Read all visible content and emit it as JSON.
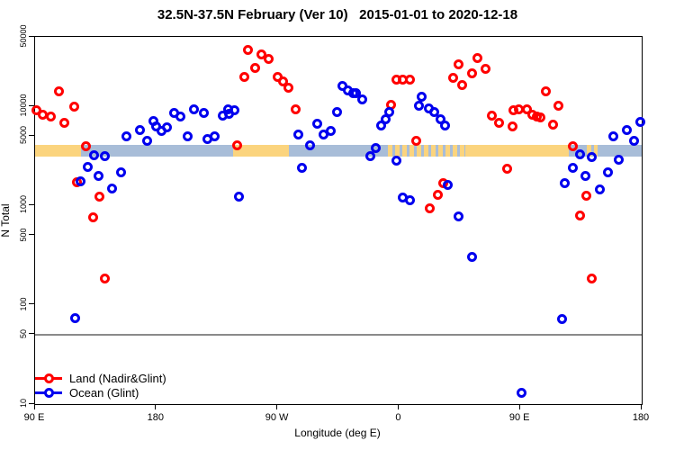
{
  "title": "32.5N-37.5N February (Ver 10)   2015-01-01 to 2020-12-18",
  "chart_data": {
    "type": "scatter",
    "title": "32.5N-37.5N February (Ver 10)   2015-01-01 to 2020-12-18",
    "xlabel": "Longitude (deg E)",
    "ylabel": "N Total",
    "x_axis": {
      "plot_range_deg": [
        90,
        540
      ],
      "note": "longitude axis runs eastward from 90E through 180, 90W, 0 and back to 180",
      "ticks": [
        {
          "deg": 90,
          "label": "90 E"
        },
        {
          "deg": 180,
          "label": "180"
        },
        {
          "deg": 270,
          "label": "90 W"
        },
        {
          "deg": 360,
          "label": "0"
        },
        {
          "deg": 450,
          "label": "90 E"
        },
        {
          "deg": 540,
          "label": "180"
        }
      ]
    },
    "y_axis": {
      "scale": "log",
      "range": [
        10,
        50000
      ],
      "ticks": [
        50000,
        10000,
        5000,
        1000,
        500,
        100,
        50,
        10
      ]
    },
    "reference_line": {
      "value": 50,
      "color": "#8a8a8a"
    },
    "map_band": {
      "value_top": 4080,
      "value_bottom": 3120,
      "land_color": "#fbd47e",
      "ocean_color": "#a8bdd8",
      "segments": [
        {
          "from": 90,
          "to": 121,
          "type": "land"
        },
        {
          "from": 121,
          "to": 125,
          "type": "mixed"
        },
        {
          "from": 125,
          "to": 237,
          "type": "ocean"
        },
        {
          "from": 237,
          "to": 278,
          "type": "land"
        },
        {
          "from": 278,
          "to": 352,
          "type": "ocean"
        },
        {
          "from": 352,
          "to": 409,
          "type": "mixed"
        },
        {
          "from": 409,
          "to": 486,
          "type": "land"
        },
        {
          "from": 486,
          "to": 499,
          "type": "ocean"
        },
        {
          "from": 499,
          "to": 507,
          "type": "mixed"
        },
        {
          "from": 507,
          "to": 540,
          "type": "ocean"
        }
      ]
    },
    "legend": {
      "position": "bottom-left"
    },
    "series": [
      {
        "name": "Land (Nadir&Glint)",
        "color": "#ff0000",
        "points": [
          [
            108,
            14000
          ],
          [
            119,
            9950
          ],
          [
            91,
            9030
          ],
          [
            96,
            8260
          ],
          [
            102,
            7850
          ],
          [
            112,
            6780
          ],
          [
            128,
            3940
          ],
          [
            121,
            1710
          ],
          [
            138,
            1230
          ],
          [
            133,
            760
          ],
          [
            142,
            185
          ],
          [
            248,
            36600
          ],
          [
            258,
            33600
          ],
          [
            263,
            30100
          ],
          [
            253,
            24400
          ],
          [
            245,
            19800
          ],
          [
            270,
            19800
          ],
          [
            274,
            17900
          ],
          [
            278,
            15300
          ],
          [
            283,
            9400
          ],
          [
            240,
            4080
          ],
          [
            358,
            18400
          ],
          [
            363,
            18400
          ],
          [
            368,
            18400
          ],
          [
            354,
            10300
          ],
          [
            373,
            4530
          ],
          [
            404,
            26600
          ],
          [
            418,
            30500
          ],
          [
            424,
            23600
          ],
          [
            414,
            21600
          ],
          [
            400,
            19400
          ],
          [
            407,
            16300
          ],
          [
            429,
            8070
          ],
          [
            434,
            6880
          ],
          [
            445,
            9080
          ],
          [
            449,
            9220
          ],
          [
            455,
            9220
          ],
          [
            459,
            8300
          ],
          [
            462,
            7910
          ],
          [
            465,
            7750
          ],
          [
            444,
            6290
          ],
          [
            440,
            2370
          ],
          [
            393,
            1675
          ],
          [
            389,
            1295
          ],
          [
            383,
            947
          ],
          [
            469,
            14100
          ],
          [
            478,
            10200
          ],
          [
            474,
            6500
          ],
          [
            489,
            3940
          ],
          [
            499,
            1250
          ],
          [
            494,
            785
          ],
          [
            503,
            185
          ]
        ]
      },
      {
        "name": "Ocean (Glint)",
        "color": "#0000ee",
        "points": [
          [
            158,
            5000
          ],
          [
            168,
            5820
          ],
          [
            178,
            7060
          ],
          [
            180,
            6240
          ],
          [
            184,
            5660
          ],
          [
            188,
            6110
          ],
          [
            193,
            8650
          ],
          [
            198,
            7910
          ],
          [
            208,
            9220
          ],
          [
            203,
            5000
          ],
          [
            173,
            4440
          ],
          [
            134,
            3200
          ],
          [
            142,
            3160
          ],
          [
            129,
            2460
          ],
          [
            137,
            1970
          ],
          [
            154,
            2140
          ],
          [
            147,
            1470
          ],
          [
            124,
            1750
          ],
          [
            120,
            73
          ],
          [
            215,
            8650
          ],
          [
            229,
            8070
          ],
          [
            233,
            9220
          ],
          [
            234,
            8470
          ],
          [
            238,
            9080
          ],
          [
            218,
            4700
          ],
          [
            223,
            5030
          ],
          [
            241,
            1220
          ],
          [
            318,
            16100
          ],
          [
            322,
            14500
          ],
          [
            326,
            13500
          ],
          [
            328,
            13500
          ],
          [
            333,
            11800
          ],
          [
            314,
            8790
          ],
          [
            299,
            6640
          ],
          [
            309,
            5700
          ],
          [
            304,
            5210
          ],
          [
            285,
            5210
          ],
          [
            294,
            4000
          ],
          [
            288,
            2390
          ],
          [
            353,
            8670
          ],
          [
            350,
            7330
          ],
          [
            347,
            6340
          ],
          [
            377,
            12600
          ],
          [
            375,
            10200
          ],
          [
            382,
            9550
          ],
          [
            386,
            8790
          ],
          [
            391,
            7330
          ],
          [
            394,
            6430
          ],
          [
            343,
            3760
          ],
          [
            339,
            3130
          ],
          [
            358,
            2840
          ],
          [
            396,
            1620
          ],
          [
            363,
            1210
          ],
          [
            368,
            1120
          ],
          [
            404,
            770
          ],
          [
            414,
            305
          ],
          [
            539,
            6980
          ],
          [
            529,
            5780
          ],
          [
            519,
            4950
          ],
          [
            534,
            4440
          ],
          [
            494,
            3270
          ],
          [
            503,
            3090
          ],
          [
            523,
            2920
          ],
          [
            489,
            2420
          ],
          [
            515,
            2150
          ],
          [
            498,
            2000
          ],
          [
            483,
            1690
          ],
          [
            509,
            1460
          ],
          [
            481,
            72
          ],
          [
            451,
            13
          ]
        ]
      }
    ]
  }
}
